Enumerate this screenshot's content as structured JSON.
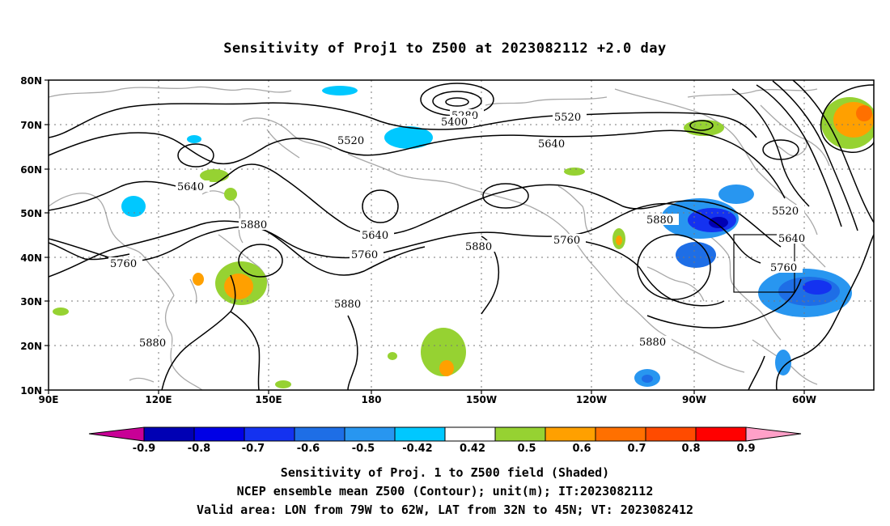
{
  "title": "Sensitivity of Proj1 to Z500 at 2023082112 +2.0 day",
  "lat_labels": [
    "80N",
    "70N",
    "60N",
    "50N",
    "40N",
    "30N",
    "20N",
    "10N"
  ],
  "lon_labels": [
    "90E",
    "120E",
    "150E",
    "180",
    "150W",
    "120W",
    "90W",
    "60W"
  ],
  "contour_labels": {
    "c5280": "5280",
    "c5400": "5400",
    "c5520a": "5520",
    "c5520b": "5520",
    "c5520c": "5520",
    "c5640a": "5640",
    "c5640b": "5640",
    "c5640c": "5640",
    "c5640d": "5640",
    "c5760a": "5760",
    "c5760b": "5760",
    "c5760c": "5760",
    "c5760d": "5760",
    "c5880a": "5880",
    "c5880b": "5880",
    "c5880c": "5880",
    "c5880d": "5880",
    "c5880e": "5880",
    "c5880f": "5880"
  },
  "colorbar": {
    "labels": [
      "-0.9",
      "-0.8",
      "-0.7",
      "-0.6",
      "-0.5",
      "-0.42",
      "0.42",
      "0.5",
      "0.6",
      "0.7",
      "0.8",
      "0.9"
    ],
    "colors": [
      "#0000b4",
      "#0000e6",
      "#1432f0",
      "#1e6ee6",
      "#2896f0",
      "#00c8ff",
      "#ffffff",
      "#96d232",
      "#ffa000",
      "#ff7000",
      "#ff4b00",
      "#ff0000"
    ],
    "low_end_color": "#c80096",
    "high_end_color": "#ffa0c8"
  },
  "footer": {
    "line1": "Sensitivity of Proj. 1 to Z500 field (Shaded)",
    "line2": "NCEP ensemble mean Z500 (Contour); unit(m); IT:2023082112",
    "line3": "Valid area: LON from 79W to 62W, LAT from 32N to 45N; VT: 2023082412"
  }
}
